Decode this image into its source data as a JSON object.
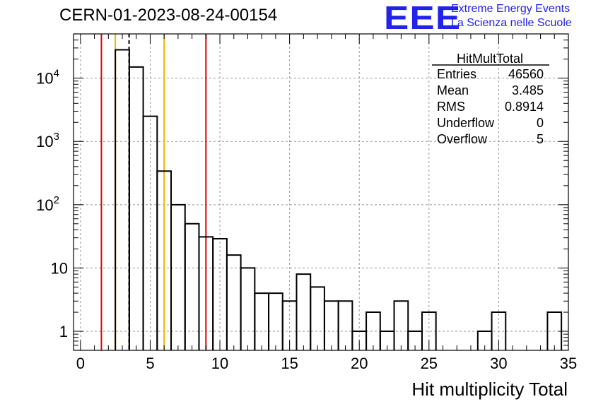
{
  "header": {
    "run_id": "CERN-01-2023-08-24-00154",
    "logo_mark": "EEE",
    "logo_line1": "Extreme Energy Events",
    "logo_line2": "La Scienza nelle Scuole"
  },
  "stats_box": {
    "title": "HitMultTotal",
    "rows": [
      {
        "label": "Entries",
        "value": "46560"
      },
      {
        "label": "Mean",
        "value": "3.485"
      },
      {
        "label": "RMS",
        "value": "0.8914"
      },
      {
        "label": "Underflow",
        "value": "0"
      },
      {
        "label": "Overflow",
        "value": "5"
      }
    ]
  },
  "colors": {
    "histogram": "#000000",
    "red_lines": "#dd0000",
    "yellow_lines": "#f0b400",
    "mean_line": "#000000",
    "grid": "#999999"
  },
  "chart_data": {
    "type": "histogram",
    "title": "CERN-01-2023-08-24-00154",
    "xlabel": "Hit multiplicity Total",
    "ylabel": "",
    "xlim": [
      -0.5,
      35
    ],
    "ylim": [
      0.5,
      50000
    ],
    "y_scale": "log",
    "grid": true,
    "bin_width": 1,
    "bins": [
      {
        "x_low": 2.5,
        "x_high": 3.5,
        "count": 28000
      },
      {
        "x_low": 3.5,
        "x_high": 4.5,
        "count": 15000
      },
      {
        "x_low": 4.5,
        "x_high": 5.5,
        "count": 2500
      },
      {
        "x_low": 5.5,
        "x_high": 6.5,
        "count": 340
      },
      {
        "x_low": 6.5,
        "x_high": 7.5,
        "count": 100
      },
      {
        "x_low": 7.5,
        "x_high": 8.5,
        "count": 50
      },
      {
        "x_low": 8.5,
        "x_high": 9.5,
        "count": 31
      },
      {
        "x_low": 9.5,
        "x_high": 10.5,
        "count": 29
      },
      {
        "x_low": 10.5,
        "x_high": 11.5,
        "count": 16
      },
      {
        "x_low": 11.5,
        "x_high": 12.5,
        "count": 10
      },
      {
        "x_low": 12.5,
        "x_high": 13.5,
        "count": 4
      },
      {
        "x_low": 13.5,
        "x_high": 14.5,
        "count": 4
      },
      {
        "x_low": 14.5,
        "x_high": 15.5,
        "count": 3
      },
      {
        "x_low": 15.5,
        "x_high": 16.5,
        "count": 8
      },
      {
        "x_low": 16.5,
        "x_high": 17.5,
        "count": 5
      },
      {
        "x_low": 17.5,
        "x_high": 18.5,
        "count": 3
      },
      {
        "x_low": 18.5,
        "x_high": 19.5,
        "count": 3
      },
      {
        "x_low": 19.5,
        "x_high": 20.5,
        "count": 1
      },
      {
        "x_low": 20.5,
        "x_high": 21.5,
        "count": 2
      },
      {
        "x_low": 21.5,
        "x_high": 22.5,
        "count": 1
      },
      {
        "x_low": 22.5,
        "x_high": 23.5,
        "count": 3
      },
      {
        "x_low": 23.5,
        "x_high": 24.5,
        "count": 1
      },
      {
        "x_low": 24.5,
        "x_high": 25.5,
        "count": 2
      },
      {
        "x_low": 28.5,
        "x_high": 29.5,
        "count": 1
      },
      {
        "x_low": 29.5,
        "x_high": 30.5,
        "count": 2
      },
      {
        "x_low": 33.5,
        "x_high": 34.5,
        "count": 2
      }
    ],
    "vertical_lines": [
      {
        "x": 1.5,
        "color": "red",
        "style": "solid"
      },
      {
        "x": 2.5,
        "color": "yellow",
        "style": "solid"
      },
      {
        "x": 3.485,
        "color": "black",
        "style": "dashed"
      },
      {
        "x": 6.0,
        "color": "yellow",
        "style": "solid"
      },
      {
        "x": 9.0,
        "color": "red",
        "style": "solid"
      }
    ],
    "x_ticks": [
      {
        "value": 0,
        "label": "0"
      },
      {
        "value": 5,
        "label": "5"
      },
      {
        "value": 10,
        "label": "10"
      },
      {
        "value": 15,
        "label": "15"
      },
      {
        "value": 20,
        "label": "20"
      },
      {
        "value": 25,
        "label": "25"
      },
      {
        "value": 30,
        "label": "30"
      },
      {
        "value": 35,
        "label": "35"
      }
    ],
    "y_ticks": [
      {
        "value": 1,
        "label": "1",
        "exp": ""
      },
      {
        "value": 10,
        "label": "10",
        "exp": ""
      },
      {
        "value": 100,
        "label": "10",
        "exp": "2"
      },
      {
        "value": 1000,
        "label": "10",
        "exp": "3"
      },
      {
        "value": 10000,
        "label": "10",
        "exp": "4"
      }
    ]
  }
}
